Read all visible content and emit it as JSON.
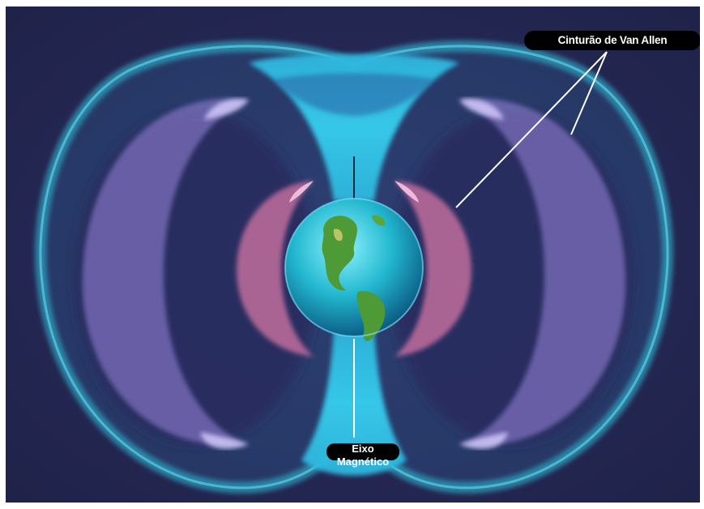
{
  "diagram": {
    "labels": {
      "belt": "Cinturão de Van Allen",
      "axis_line1": "Eixo",
      "axis_line2": "Magnético"
    },
    "colors": {
      "background": "#262a55",
      "magnetosphere": "#26c4dc",
      "inner_belt": "#b86a9a",
      "outer_belt": "#8f7bd6",
      "earth_ocean": "#1fb8c6",
      "earth_land": "#4e9a36",
      "label_bg": "#000000",
      "label_text": "#ffffff"
    }
  }
}
